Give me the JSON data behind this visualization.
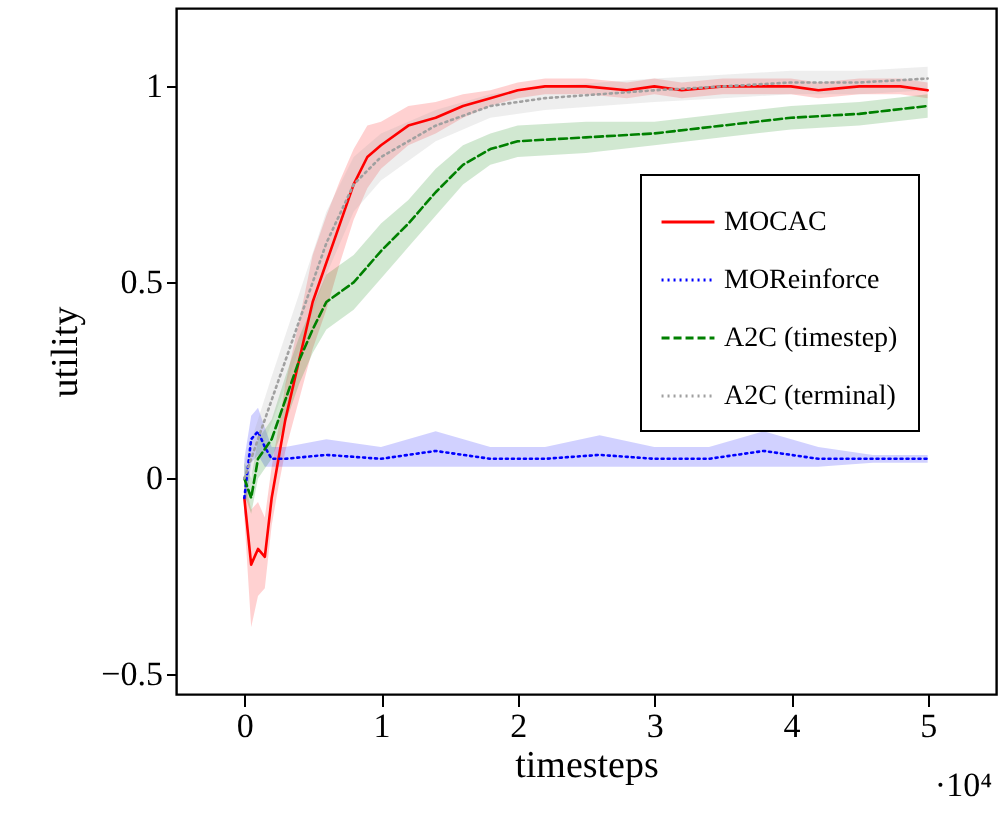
{
  "chart_data": {
    "type": "line",
    "xlabel": "timesteps",
    "ylabel": "utility",
    "xlim": [
      -0.5,
      5.5
    ],
    "ylim": [
      -0.55,
      1.2
    ],
    "xticks": [
      0,
      1,
      2,
      3,
      4,
      5
    ],
    "yticks": [
      -0.5,
      0,
      0.5,
      1
    ],
    "annotations": [
      "·10⁴"
    ],
    "grid": false,
    "legend": "right",
    "marker": "none",
    "series": [
      {
        "name": "MOCAC",
        "color": "#ff0000",
        "line_style": "solid",
        "x": [
          0,
          0.05,
          0.1,
          0.15,
          0.2,
          0.25,
          0.3,
          0.4,
          0.5,
          0.6,
          0.7,
          0.8,
          0.9,
          1.0,
          1.2,
          1.4,
          1.6,
          1.8,
          2.0,
          2.2,
          2.5,
          2.8,
          3.0,
          3.2,
          3.5,
          3.8,
          4.0,
          4.2,
          4.5,
          4.8,
          5.0
        ],
        "values": [
          -0.05,
          -0.22,
          -0.18,
          -0.2,
          -0.05,
          0.05,
          0.15,
          0.3,
          0.45,
          0.55,
          0.65,
          0.75,
          0.82,
          0.85,
          0.9,
          0.92,
          0.95,
          0.97,
          0.99,
          1.0,
          1.0,
          0.99,
          1.0,
          0.99,
          1.0,
          1.0,
          1.0,
          0.99,
          1.0,
          1.0,
          0.99
        ],
        "lower": [
          -0.1,
          -0.38,
          -0.3,
          -0.28,
          -0.12,
          -0.02,
          0.07,
          0.2,
          0.33,
          0.43,
          0.55,
          0.66,
          0.74,
          0.79,
          0.85,
          0.88,
          0.92,
          0.95,
          0.97,
          0.98,
          0.98,
          0.97,
          0.98,
          0.97,
          0.98,
          0.98,
          0.98,
          0.97,
          0.98,
          0.98,
          0.97
        ],
        "upper": [
          0,
          -0.08,
          -0.06,
          -0.1,
          0.03,
          0.13,
          0.24,
          0.4,
          0.57,
          0.67,
          0.76,
          0.84,
          0.9,
          0.91,
          0.95,
          0.96,
          0.98,
          0.99,
          1.01,
          1.02,
          1.02,
          1.01,
          1.02,
          1.01,
          1.02,
          1.02,
          1.02,
          1.01,
          1.02,
          1.02,
          1.01
        ]
      },
      {
        "name": "MOReinforce",
        "color": "#0000ff",
        "line_style": "dotted",
        "x": [
          0,
          0.05,
          0.1,
          0.15,
          0.2,
          0.3,
          0.6,
          1.0,
          1.4,
          1.8,
          2.2,
          2.6,
          3.0,
          3.4,
          3.8,
          4.2,
          4.6,
          5.0
        ],
        "values": [
          -0.05,
          0.1,
          0.12,
          0.08,
          0.05,
          0.05,
          0.06,
          0.05,
          0.07,
          0.05,
          0.05,
          0.06,
          0.05,
          0.05,
          0.07,
          0.05,
          0.05,
          0.05
        ],
        "lower": [
          -0.1,
          0.04,
          0.06,
          0.03,
          0.03,
          0.03,
          0.03,
          0.03,
          0.03,
          0.03,
          0.03,
          0.03,
          0.03,
          0.03,
          0.03,
          0.03,
          0.04,
          0.04
        ],
        "upper": [
          0.05,
          0.16,
          0.18,
          0.13,
          0.08,
          0.08,
          0.1,
          0.08,
          0.12,
          0.08,
          0.08,
          0.11,
          0.08,
          0.08,
          0.12,
          0.08,
          0.06,
          0.06
        ]
      },
      {
        "name": "A2C (timestep)",
        "color": "#008000",
        "line_style": "dashed",
        "x": [
          0,
          0.05,
          0.1,
          0.2,
          0.3,
          0.4,
          0.5,
          0.6,
          0.8,
          1.0,
          1.2,
          1.4,
          1.6,
          1.8,
          2.0,
          2.5,
          3.0,
          3.5,
          4.0,
          4.5,
          5.0
        ],
        "values": [
          0,
          -0.05,
          0.05,
          0.1,
          0.2,
          0.3,
          0.38,
          0.45,
          0.5,
          0.58,
          0.65,
          0.73,
          0.8,
          0.84,
          0.86,
          0.87,
          0.88,
          0.9,
          0.92,
          0.93,
          0.95
        ],
        "lower": [
          -0.04,
          -0.09,
          0.0,
          0.05,
          0.14,
          0.24,
          0.32,
          0.38,
          0.43,
          0.51,
          0.59,
          0.67,
          0.75,
          0.8,
          0.82,
          0.83,
          0.85,
          0.87,
          0.89,
          0.9,
          0.92
        ],
        "upper": [
          0.04,
          0.0,
          0.1,
          0.15,
          0.26,
          0.36,
          0.44,
          0.52,
          0.57,
          0.65,
          0.71,
          0.79,
          0.85,
          0.88,
          0.9,
          0.91,
          0.91,
          0.93,
          0.95,
          0.96,
          0.98
        ]
      },
      {
        "name": "A2C (terminal)",
        "color": "#a0a0a0",
        "line_style": "dotted",
        "x": [
          0,
          0.1,
          0.2,
          0.4,
          0.6,
          0.8,
          1.0,
          1.4,
          1.8,
          2.2,
          2.6,
          3.0,
          3.5,
          4.0,
          4.5,
          5.0
        ],
        "values": [
          0,
          0.1,
          0.2,
          0.4,
          0.6,
          0.75,
          0.82,
          0.9,
          0.95,
          0.97,
          0.98,
          0.99,
          1.0,
          1.01,
          1.01,
          1.02
        ],
        "lower": [
          -0.04,
          0.05,
          0.14,
          0.33,
          0.52,
          0.68,
          0.76,
          0.86,
          0.92,
          0.94,
          0.95,
          0.96,
          0.97,
          0.98,
          0.98,
          0.99
        ],
        "upper": [
          0.04,
          0.15,
          0.26,
          0.47,
          0.68,
          0.82,
          0.88,
          0.94,
          0.98,
          1.0,
          1.01,
          1.02,
          1.03,
          1.04,
          1.04,
          1.05
        ]
      }
    ]
  }
}
